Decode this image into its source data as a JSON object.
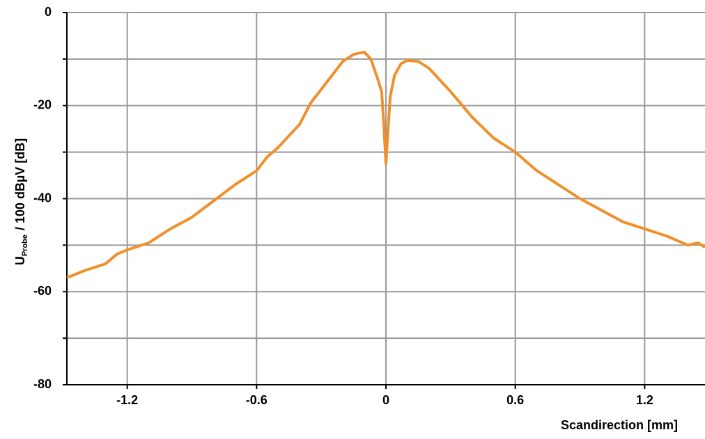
{
  "chart_data": {
    "type": "line",
    "xlabel": "Scandirection [mm]",
    "ylabel": "U",
    "ylabel_sub": "Probe",
    "ylabel_rest": "/ 100 dBµV [dB]",
    "x": [
      -1.48,
      -1.4,
      -1.3,
      -1.25,
      -1.2,
      -1.1,
      -1.0,
      -0.9,
      -0.8,
      -0.7,
      -0.6,
      -0.55,
      -0.5,
      -0.4,
      -0.35,
      -0.3,
      -0.25,
      -0.2,
      -0.15,
      -0.1,
      -0.07,
      -0.04,
      -0.02,
      -0.01,
      0,
      0.01,
      0.02,
      0.04,
      0.07,
      0.1,
      0.15,
      0.2,
      0.3,
      0.4,
      0.5,
      0.6,
      0.7,
      0.8,
      0.9,
      1.0,
      1.1,
      1.2,
      1.3,
      1.4,
      1.45,
      1.48
    ],
    "series": [
      {
        "color": "#f0902c",
        "values": [
          -57,
          -55.5,
          -54,
          -52,
          -51,
          -49.5,
          -46.5,
          -44,
          -40.5,
          -37,
          -34,
          -31,
          -29,
          -24,
          -19.5,
          -16.5,
          -13.5,
          -10.5,
          -9,
          -8.5,
          -10,
          -14,
          -17,
          -24,
          -32.5,
          -25,
          -18,
          -13.5,
          -11,
          -10.3,
          -10.5,
          -12,
          -17,
          -22.5,
          -27,
          -30,
          -34,
          -37,
          -40,
          -42.5,
          -45,
          -46.5,
          -48,
          -50,
          -49.5,
          -50.5
        ]
      }
    ],
    "xlim": [
      -1.48,
      1.48
    ],
    "ylim": [
      -80,
      0
    ],
    "xticks": [
      -1.2,
      -0.6,
      0,
      0.6,
      1.2
    ],
    "yticks": [
      -80,
      -60,
      -40,
      -20,
      0
    ],
    "yminor": [
      -70,
      -50,
      -30,
      -10
    ],
    "grid": true
  }
}
